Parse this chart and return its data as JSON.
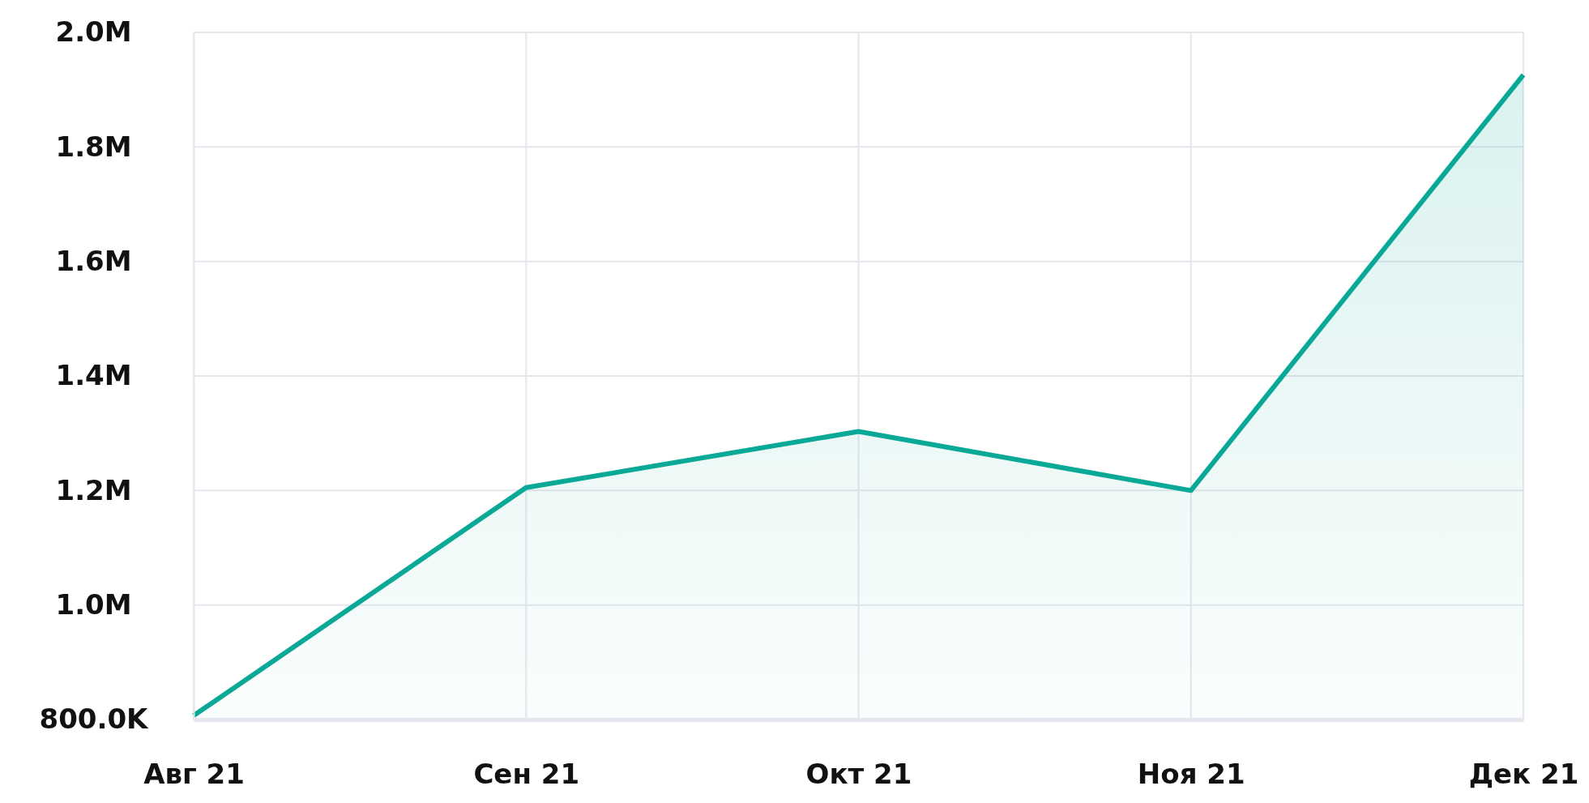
{
  "chart_data": {
    "type": "area",
    "categories": [
      "Авг 21",
      "Сен 21",
      "Окт 21",
      "Ноя 21",
      "Дек 21"
    ],
    "series": [
      {
        "color": "#0aa896",
        "values": [
          807000,
          1205000,
          1303000,
          1200000,
          1926000
        ]
      }
    ],
    "ylim": [
      800000,
      2000000
    ],
    "yticks": [
      {
        "value": 800000,
        "label": "800.0K"
      },
      {
        "value": 1000000,
        "label": "1.0M"
      },
      {
        "value": 1200000,
        "label": "1.2M"
      },
      {
        "value": 1400000,
        "label": "1.4M"
      },
      {
        "value": 1600000,
        "label": "1.6M"
      },
      {
        "value": 1800000,
        "label": "1.8M"
      },
      {
        "value": 2000000,
        "label": "2.0M"
      }
    ],
    "grid": true
  }
}
